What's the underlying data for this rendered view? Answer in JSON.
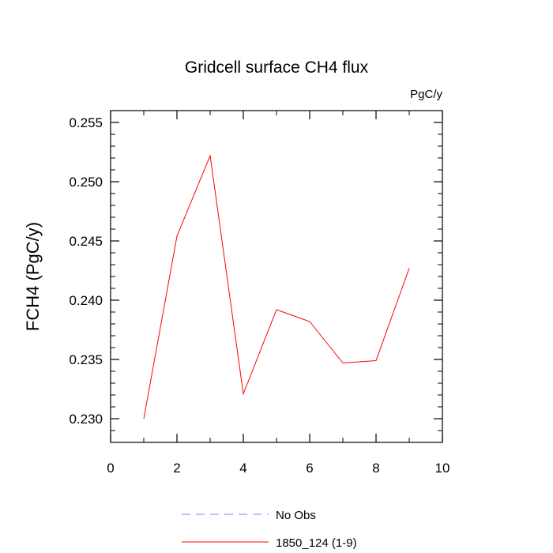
{
  "chart_data": {
    "type": "line",
    "title": "Gridcell surface CH4 flux",
    "units": "PgC/y",
    "xlabel": "",
    "ylabel": "FCH4  (PgC/y)",
    "xlim": [
      0,
      10
    ],
    "ylim": [
      0.228,
      0.256
    ],
    "x_ticks": [
      0,
      2,
      4,
      6,
      8,
      10
    ],
    "x_tick_labels": [
      "0",
      "2",
      "4",
      "6",
      "8",
      "10"
    ],
    "y_ticks": [
      0.23,
      0.235,
      0.24,
      0.245,
      0.25,
      0.255
    ],
    "y_tick_labels": [
      "0.230",
      "0.235",
      "0.240",
      "0.245",
      "0.250",
      "0.255"
    ],
    "grid": false,
    "legend_position": "bottom-center",
    "series": [
      {
        "name": "1850_124 (1-9)",
        "color": "#ff0000",
        "style": "solid",
        "x": [
          1,
          2,
          3,
          4,
          5,
          6,
          7,
          8,
          9
        ],
        "values": [
          0.23,
          0.2454,
          0.2522,
          0.2321,
          0.2392,
          0.2382,
          0.2347,
          0.2349,
          0.2427
        ]
      }
    ],
    "legend": [
      {
        "label": "No Obs",
        "color": "#8080ff",
        "style": "dashed"
      },
      {
        "label": "1850_124 (1-9)",
        "color": "#ff0000",
        "style": "solid"
      }
    ]
  }
}
